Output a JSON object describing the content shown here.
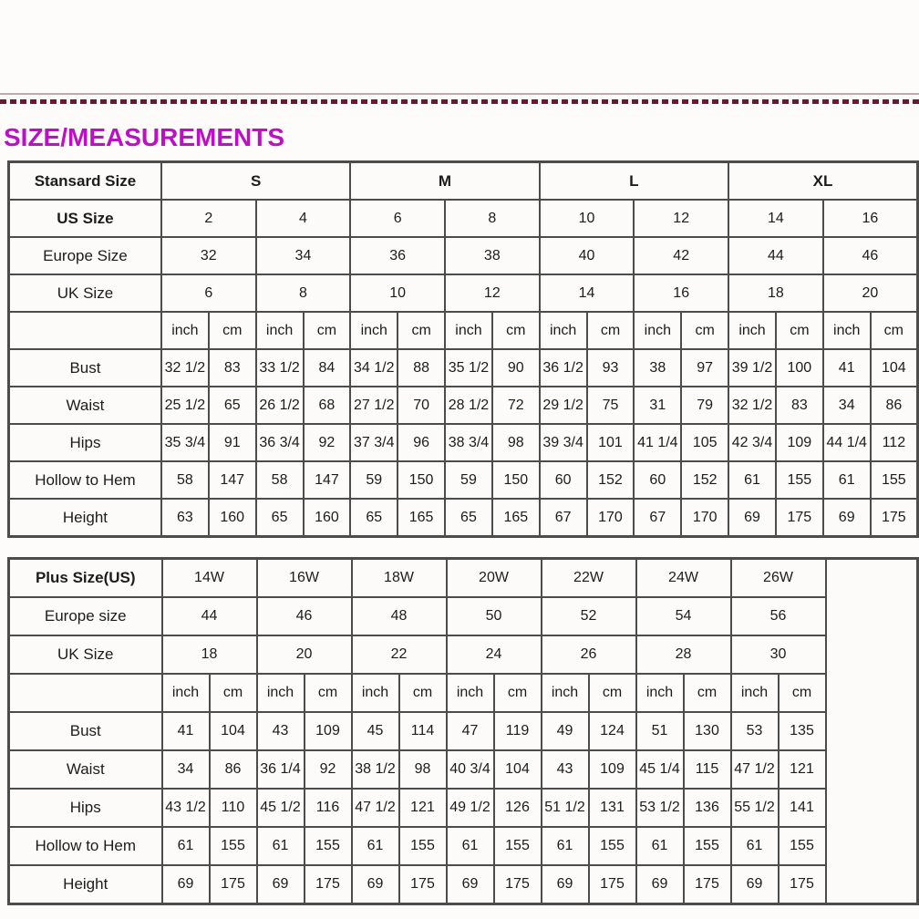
{
  "page": {
    "title": "SIZE/MEASUREMENTS"
  },
  "decor": {
    "title_color": "#bc10c4",
    "dash_color": "#6d1638",
    "thin_line_color": "#b9abb0",
    "border_color": "#4c4c4c"
  },
  "standard_table": {
    "rows": [
      {
        "cells": [
          {
            "t": "Stansard Size",
            "b": 1
          },
          {
            "t": "S",
            "cs": 4,
            "b": 1
          },
          {
            "t": "M",
            "cs": 4,
            "b": 1
          },
          {
            "t": "L",
            "cs": 4,
            "b": 1
          },
          {
            "t": "XL",
            "cs": 4,
            "b": 1
          }
        ]
      },
      {
        "cells": [
          {
            "t": "US Size",
            "b": 1
          },
          {
            "t": "2",
            "cs": 2
          },
          {
            "t": "4",
            "cs": 2
          },
          {
            "t": "6",
            "cs": 2
          },
          {
            "t": "8",
            "cs": 2
          },
          {
            "t": "10",
            "cs": 2
          },
          {
            "t": "12",
            "cs": 2
          },
          {
            "t": "14",
            "cs": 2
          },
          {
            "t": "16",
            "cs": 2
          }
        ]
      },
      {
        "cells": [
          {
            "t": "Europe Size"
          },
          {
            "t": "32",
            "cs": 2
          },
          {
            "t": "34",
            "cs": 2
          },
          {
            "t": "36",
            "cs": 2
          },
          {
            "t": "38",
            "cs": 2
          },
          {
            "t": "40",
            "cs": 2
          },
          {
            "t": "42",
            "cs": 2
          },
          {
            "t": "44",
            "cs": 2
          },
          {
            "t": "46",
            "cs": 2
          }
        ]
      },
      {
        "cells": [
          {
            "t": "UK Size"
          },
          {
            "t": "6",
            "cs": 2
          },
          {
            "t": "8",
            "cs": 2
          },
          {
            "t": "10",
            "cs": 2
          },
          {
            "t": "12",
            "cs": 2
          },
          {
            "t": "14",
            "cs": 2
          },
          {
            "t": "16",
            "cs": 2
          },
          {
            "t": "18",
            "cs": 2
          },
          {
            "t": "20",
            "cs": 2
          }
        ]
      },
      {
        "cells": [
          {
            "t": ""
          },
          {
            "t": "inch"
          },
          {
            "t": "cm"
          },
          {
            "t": "inch"
          },
          {
            "t": "cm"
          },
          {
            "t": "inch"
          },
          {
            "t": "cm"
          },
          {
            "t": "inch"
          },
          {
            "t": "cm"
          },
          {
            "t": "inch"
          },
          {
            "t": "cm"
          },
          {
            "t": "inch"
          },
          {
            "t": "cm"
          },
          {
            "t": "inch"
          },
          {
            "t": "cm"
          },
          {
            "t": "inch"
          },
          {
            "t": "cm"
          }
        ]
      },
      {
        "cells": [
          {
            "t": "Bust"
          },
          {
            "t": "32 1/2"
          },
          {
            "t": "83"
          },
          {
            "t": "33 1/2"
          },
          {
            "t": "84"
          },
          {
            "t": "34 1/2"
          },
          {
            "t": "88"
          },
          {
            "t": "35 1/2"
          },
          {
            "t": "90"
          },
          {
            "t": "36 1/2"
          },
          {
            "t": "93"
          },
          {
            "t": "38"
          },
          {
            "t": "97"
          },
          {
            "t": "39 1/2"
          },
          {
            "t": "100"
          },
          {
            "t": "41"
          },
          {
            "t": "104"
          }
        ]
      },
      {
        "cells": [
          {
            "t": "Waist"
          },
          {
            "t": "25 1/2"
          },
          {
            "t": "65"
          },
          {
            "t": "26 1/2"
          },
          {
            "t": "68"
          },
          {
            "t": "27 1/2"
          },
          {
            "t": "70"
          },
          {
            "t": "28 1/2"
          },
          {
            "t": "72"
          },
          {
            "t": "29 1/2"
          },
          {
            "t": "75"
          },
          {
            "t": "31"
          },
          {
            "t": "79"
          },
          {
            "t": "32 1/2"
          },
          {
            "t": "83"
          },
          {
            "t": "34"
          },
          {
            "t": "86"
          }
        ]
      },
      {
        "cells": [
          {
            "t": "Hips"
          },
          {
            "t": "35 3/4"
          },
          {
            "t": "91"
          },
          {
            "t": "36 3/4"
          },
          {
            "t": "92"
          },
          {
            "t": "37 3/4"
          },
          {
            "t": "96"
          },
          {
            "t": "38 3/4"
          },
          {
            "t": "98"
          },
          {
            "t": "39 3/4"
          },
          {
            "t": "101"
          },
          {
            "t": "41 1/4"
          },
          {
            "t": "105"
          },
          {
            "t": "42 3/4"
          },
          {
            "t": "109"
          },
          {
            "t": "44 1/4"
          },
          {
            "t": "112"
          }
        ]
      },
      {
        "cells": [
          {
            "t": "Hollow to Hem"
          },
          {
            "t": "58"
          },
          {
            "t": "147"
          },
          {
            "t": "58"
          },
          {
            "t": "147"
          },
          {
            "t": "59"
          },
          {
            "t": "150"
          },
          {
            "t": "59"
          },
          {
            "t": "150"
          },
          {
            "t": "60"
          },
          {
            "t": "152"
          },
          {
            "t": "60"
          },
          {
            "t": "152"
          },
          {
            "t": "61"
          },
          {
            "t": "155"
          },
          {
            "t": "61"
          },
          {
            "t": "155"
          }
        ]
      },
      {
        "cells": [
          {
            "t": "Height"
          },
          {
            "t": "63"
          },
          {
            "t": "160"
          },
          {
            "t": "65"
          },
          {
            "t": "160"
          },
          {
            "t": "65"
          },
          {
            "t": "165"
          },
          {
            "t": "65"
          },
          {
            "t": "165"
          },
          {
            "t": "67"
          },
          {
            "t": "170"
          },
          {
            "t": "67"
          },
          {
            "t": "170"
          },
          {
            "t": "69"
          },
          {
            "t": "175"
          },
          {
            "t": "69"
          },
          {
            "t": "175"
          }
        ]
      }
    ]
  },
  "plus_table": {
    "rows": [
      {
        "cells": [
          {
            "t": "Plus Size(US)",
            "b": 1
          },
          {
            "t": "14W",
            "cs": 2
          },
          {
            "t": "16W",
            "cs": 2
          },
          {
            "t": "18W",
            "cs": 2
          },
          {
            "t": "20W",
            "cs": 2
          },
          {
            "t": "22W",
            "cs": 2
          },
          {
            "t": "24W",
            "cs": 2
          },
          {
            "t": "26W",
            "cs": 2
          },
          {
            "t": "",
            "rs": 9
          }
        ]
      },
      {
        "cells": [
          {
            "t": "Europe size"
          },
          {
            "t": "44",
            "cs": 2
          },
          {
            "t": "46",
            "cs": 2
          },
          {
            "t": "48",
            "cs": 2
          },
          {
            "t": "50",
            "cs": 2
          },
          {
            "t": "52",
            "cs": 2
          },
          {
            "t": "54",
            "cs": 2
          },
          {
            "t": "56",
            "cs": 2
          }
        ]
      },
      {
        "cells": [
          {
            "t": "UK Size"
          },
          {
            "t": "18",
            "cs": 2
          },
          {
            "t": "20",
            "cs": 2
          },
          {
            "t": "22",
            "cs": 2
          },
          {
            "t": "24",
            "cs": 2
          },
          {
            "t": "26",
            "cs": 2
          },
          {
            "t": "28",
            "cs": 2
          },
          {
            "t": "30",
            "cs": 2
          }
        ]
      },
      {
        "cells": [
          {
            "t": ""
          },
          {
            "t": "inch"
          },
          {
            "t": "cm"
          },
          {
            "t": "inch"
          },
          {
            "t": "cm"
          },
          {
            "t": "inch"
          },
          {
            "t": "cm"
          },
          {
            "t": "inch"
          },
          {
            "t": "cm"
          },
          {
            "t": "inch"
          },
          {
            "t": "cm"
          },
          {
            "t": "inch"
          },
          {
            "t": "cm"
          },
          {
            "t": "inch"
          },
          {
            "t": "cm"
          }
        ]
      },
      {
        "cells": [
          {
            "t": "Bust"
          },
          {
            "t": "41"
          },
          {
            "t": "104"
          },
          {
            "t": "43"
          },
          {
            "t": "109"
          },
          {
            "t": "45"
          },
          {
            "t": "114"
          },
          {
            "t": "47"
          },
          {
            "t": "119"
          },
          {
            "t": "49"
          },
          {
            "t": "124"
          },
          {
            "t": "51"
          },
          {
            "t": "130"
          },
          {
            "t": "53"
          },
          {
            "t": "135"
          }
        ]
      },
      {
        "cells": [
          {
            "t": "Waist"
          },
          {
            "t": "34"
          },
          {
            "t": "86"
          },
          {
            "t": "36 1/4"
          },
          {
            "t": "92"
          },
          {
            "t": "38 1/2"
          },
          {
            "t": "98"
          },
          {
            "t": "40 3/4"
          },
          {
            "t": "104"
          },
          {
            "t": "43"
          },
          {
            "t": "109"
          },
          {
            "t": "45 1/4"
          },
          {
            "t": "115"
          },
          {
            "t": "47 1/2"
          },
          {
            "t": "121"
          }
        ]
      },
      {
        "cells": [
          {
            "t": "Hips"
          },
          {
            "t": "43 1/2"
          },
          {
            "t": "110"
          },
          {
            "t": "45 1/2"
          },
          {
            "t": "116"
          },
          {
            "t": "47 1/2"
          },
          {
            "t": "121"
          },
          {
            "t": "49 1/2"
          },
          {
            "t": "126"
          },
          {
            "t": "51 1/2"
          },
          {
            "t": "131"
          },
          {
            "t": "53 1/2"
          },
          {
            "t": "136"
          },
          {
            "t": "55 1/2"
          },
          {
            "t": "141"
          }
        ]
      },
      {
        "cells": [
          {
            "t": "Hollow to Hem"
          },
          {
            "t": "61"
          },
          {
            "t": "155"
          },
          {
            "t": "61"
          },
          {
            "t": "155"
          },
          {
            "t": "61"
          },
          {
            "t": "155"
          },
          {
            "t": "61"
          },
          {
            "t": "155"
          },
          {
            "t": "61"
          },
          {
            "t": "155"
          },
          {
            "t": "61"
          },
          {
            "t": "155"
          },
          {
            "t": "61"
          },
          {
            "t": "155"
          }
        ]
      },
      {
        "cells": [
          {
            "t": "Height"
          },
          {
            "t": "69"
          },
          {
            "t": "175"
          },
          {
            "t": "69"
          },
          {
            "t": "175"
          },
          {
            "t": "69"
          },
          {
            "t": "175"
          },
          {
            "t": "69"
          },
          {
            "t": "175"
          },
          {
            "t": "69"
          },
          {
            "t": "175"
          },
          {
            "t": "69"
          },
          {
            "t": "175"
          },
          {
            "t": "69"
          },
          {
            "t": "175"
          }
        ]
      }
    ]
  }
}
